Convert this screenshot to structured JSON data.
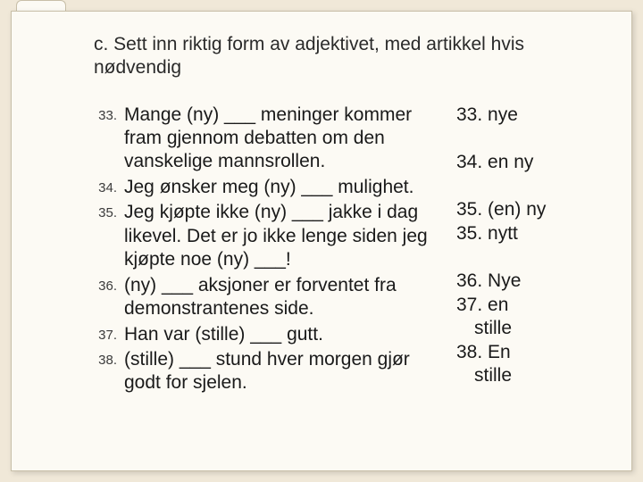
{
  "instruction": "c. Sett inn riktig form av adjektivet, med artikkel hvis nødvendig",
  "questions": [
    {
      "num": "33.",
      "text": "Mange (ny) ___ meninger kommer fram gjennom debatten om den vanskelige mannsrollen."
    },
    {
      "num": "34.",
      "text": "Jeg ønsker meg (ny) ___ mulighet."
    },
    {
      "num": "35.",
      "text": "Jeg kjøpte ikke (ny) ___ jakke i dag likevel. Det er jo ikke lenge siden jeg kjøpte noe (ny) ___!"
    },
    {
      "num": "36.",
      "text": "(ny) ___ aksjoner er forventet fra demonstrantenes side."
    },
    {
      "num": "37.",
      "text": "Han var (stille) ___ gutt."
    },
    {
      "num": "38.",
      "text": "(stille) ___ stund hver morgen gjør godt for sjelen."
    }
  ],
  "answers": [
    {
      "text": "33. nye",
      "gap": false,
      "indent": false
    },
    {
      "text": "34. en ny",
      "gap": true,
      "indent": false
    },
    {
      "text": "35. (en) ny",
      "gap": true,
      "indent": false
    },
    {
      "text": "35. nytt",
      "gap": false,
      "indent": false
    },
    {
      "text": "36. Nye",
      "gap": true,
      "indent": false
    },
    {
      "text": "37. en",
      "gap": false,
      "indent": false
    },
    {
      "text": "stille",
      "gap": false,
      "indent": true
    },
    {
      "text": "38. En",
      "gap": false,
      "indent": false
    },
    {
      "text": "stille",
      "gap": false,
      "indent": true
    }
  ],
  "colors": {
    "page_bg": "#fcfaf4",
    "body_bg": "#f0e8d8",
    "text": "#1a1a1a",
    "border": "#c8bfa8"
  }
}
